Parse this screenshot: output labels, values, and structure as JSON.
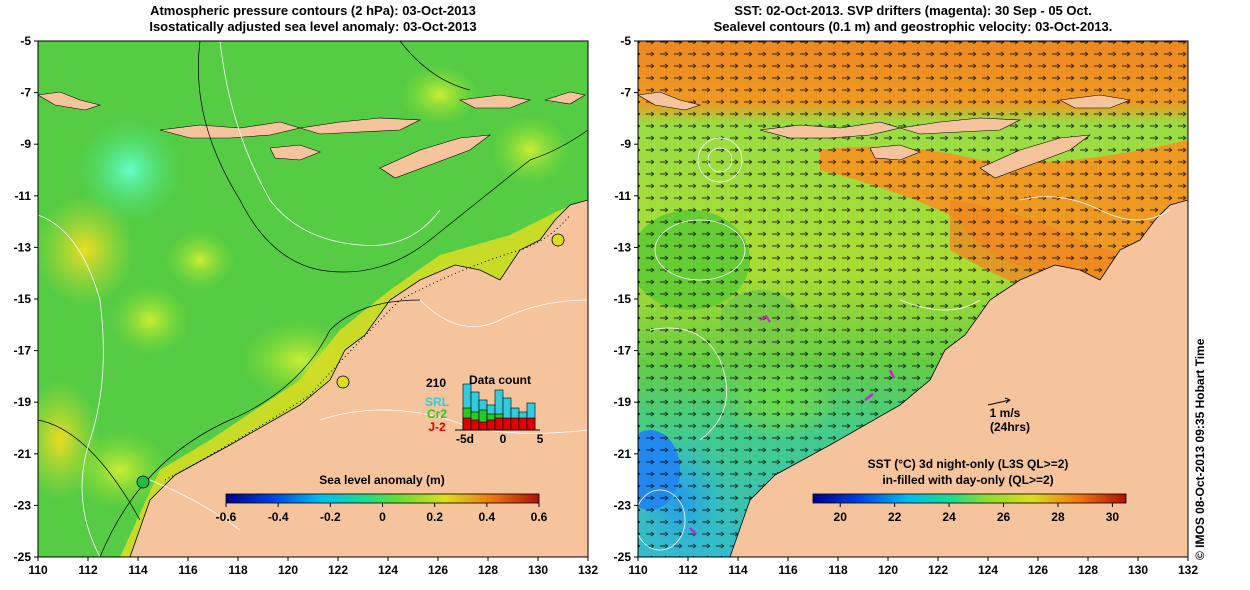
{
  "left_panel": {
    "title_line1": "Atmospheric pressure contours (2 hPa): 03-Oct-2013",
    "title_line2": "Isostatically adjusted sea level anomaly: 03-Oct-2013",
    "x_ticks": [
      "110",
      "112",
      "114",
      "116",
      "118",
      "120",
      "122",
      "124",
      "126",
      "128",
      "130",
      "132"
    ],
    "y_ticks": [
      "-5",
      "-7",
      "-9",
      "-11",
      "-13",
      "-15",
      "-17",
      "-19",
      "-21",
      "-23",
      "-25"
    ],
    "colorbar": {
      "label": "Sea level anomaly (m)",
      "ticks": [
        "-0.6",
        "-0.4",
        "-0.2",
        "0",
        "0.2",
        "0.4",
        "0.6"
      ],
      "range": [
        -0.6,
        0.6
      ]
    },
    "inset": {
      "title": "Data count",
      "max_label": "210",
      "series": [
        {
          "name": "SRL",
          "color": "#33ccdd"
        },
        {
          "name": "Cr2",
          "color": "#22cc22"
        },
        {
          "name": "J-2",
          "color": "#dd0000"
        }
      ],
      "x_ticks": [
        "-5d",
        "0",
        "5"
      ]
    }
  },
  "right_panel": {
    "title_line1": "SST: 02-Oct-2013. SVP drifters (magenta): 30 Sep - 05 Oct.",
    "title_line2": "Sealevel contours (0.1 m) and geostrophic velocity: 03-Oct-2013.",
    "x_ticks": [
      "110",
      "112",
      "114",
      "116",
      "118",
      "120",
      "122",
      "124",
      "126",
      "128",
      "130",
      "132"
    ],
    "y_ticks": [
      "-5",
      "-7",
      "-9",
      "-11",
      "-13",
      "-15",
      "-17",
      "-19",
      "-21",
      "-23",
      "-25"
    ],
    "scale_label": "1 m/s",
    "scale_sub": "(24hrs)",
    "colorbar": {
      "label_line1": "SST (°C)  3d night-only (L3S QL>=2)",
      "label_line2": "in-filled with day-only (QL>=2)",
      "ticks": [
        "20",
        "22",
        "24",
        "26",
        "28",
        "30"
      ],
      "range": [
        19,
        30.5
      ]
    }
  },
  "side_label": "© IMOS 08-Oct-2013 09:35 Hobart Time",
  "colors": {
    "land": "#f5c39c",
    "coast": "#000000",
    "contour": "#ffffff"
  }
}
